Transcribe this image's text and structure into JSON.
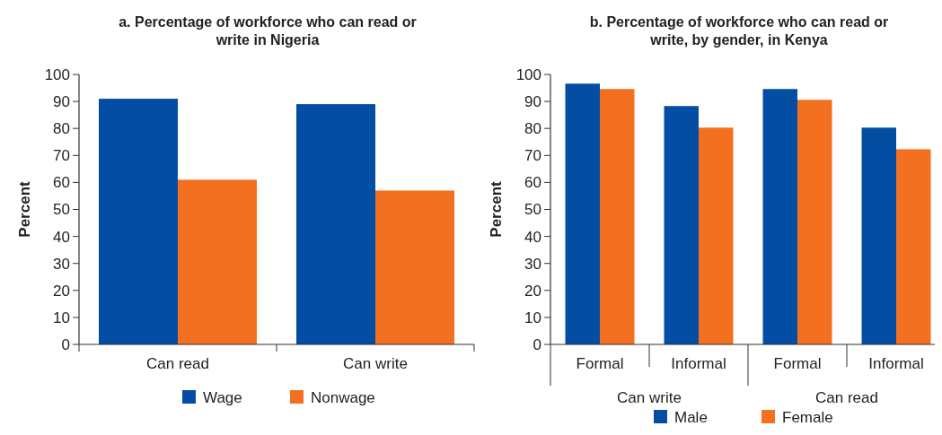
{
  "chart_data": [
    {
      "type": "bar",
      "title": "a. Percentage of workforce who can read or write in Nigeria",
      "ylabel": "Percent",
      "categories": [
        "Can read",
        "Can write"
      ],
      "series": [
        {
          "name": "Wage",
          "color": "#034ea2",
          "values": [
            91,
            89
          ]
        },
        {
          "name": "Nonwage",
          "color": "#f37021",
          "values": [
            61,
            57
          ]
        }
      ],
      "ylim": [
        0,
        100
      ],
      "yticks": [
        0,
        10,
        20,
        30,
        40,
        50,
        60,
        70,
        80,
        90,
        100
      ],
      "grid": false,
      "legend": "bottom"
    },
    {
      "type": "bar",
      "title": "b. Percentage of workforce who can read or write, by gender, in Kenya",
      "ylabel": "Percent",
      "categories": [
        "Formal",
        "Informal",
        "Formal",
        "Informal"
      ],
      "annotations": [
        "Can write",
        "Can read"
      ],
      "series": [
        {
          "name": "Male",
          "color": "#034ea2",
          "values": [
            96.6,
            88.3,
            94.6,
            80.3
          ]
        },
        {
          "name": "Female",
          "color": "#f37021",
          "values": [
            94.6,
            80.3,
            90.6,
            72.3
          ]
        }
      ],
      "ylim": [
        0,
        100
      ],
      "yticks": [
        0,
        10,
        20,
        30,
        40,
        50,
        60,
        70,
        80,
        90,
        100
      ],
      "grid": false,
      "legend": "bottom"
    }
  ]
}
